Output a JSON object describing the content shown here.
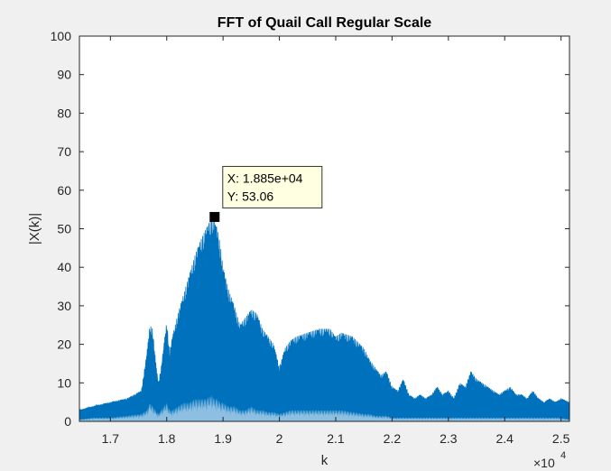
{
  "chart_data": {
    "type": "area",
    "title": "FFT of Quail Call Regular Scale",
    "xlabel": "k",
    "ylabel": "|X(k)|",
    "x_exponent_base": "×10",
    "x_exponent_power": "4",
    "xlim": [
      16450,
      25150
    ],
    "ylim": [
      0,
      100
    ],
    "grid": false,
    "x_ticks": [
      {
        "value": 17000,
        "label": "1.7"
      },
      {
        "value": 18000,
        "label": "1.8"
      },
      {
        "value": 19000,
        "label": "1.9"
      },
      {
        "value": 20000,
        "label": "2"
      },
      {
        "value": 21000,
        "label": "2.1"
      },
      {
        "value": 22000,
        "label": "2.2"
      },
      {
        "value": 23000,
        "label": "2.3"
      },
      {
        "value": 24000,
        "label": "2.4"
      },
      {
        "value": 25000,
        "label": "2.5"
      }
    ],
    "y_ticks": [
      {
        "value": 0,
        "label": "0"
      },
      {
        "value": 10,
        "label": "10"
      },
      {
        "value": 20,
        "label": "20"
      },
      {
        "value": 30,
        "label": "30"
      },
      {
        "value": 40,
        "label": "40"
      },
      {
        "value": 50,
        "label": "50"
      },
      {
        "value": 60,
        "label": "60"
      },
      {
        "value": 70,
        "label": "70"
      },
      {
        "value": 80,
        "label": "80"
      },
      {
        "value": 90,
        "label": "90"
      },
      {
        "value": 100,
        "label": "100"
      }
    ],
    "series_color": "#0072bd",
    "envelope": {
      "x": [
        16450,
        16700,
        17000,
        17300,
        17550,
        17650,
        17700,
        17750,
        17800,
        17850,
        17900,
        17950,
        18000,
        18050,
        18100,
        18200,
        18300,
        18400,
        18500,
        18600,
        18700,
        18800,
        18850,
        18900,
        18950,
        19000,
        19100,
        19200,
        19300,
        19400,
        19500,
        19600,
        19700,
        19800,
        19900,
        20000,
        20100,
        20200,
        20300,
        20500,
        20700,
        20900,
        21000,
        21100,
        21300,
        21500,
        21600,
        21700,
        21800,
        21900,
        22000,
        22100,
        22200,
        22300,
        22400,
        22500,
        22600,
        22700,
        22800,
        22900,
        23000,
        23100,
        23200,
        23300,
        23400,
        23500,
        23600,
        23700,
        23800,
        23900,
        24000,
        24100,
        24200,
        24300,
        24400,
        24500,
        24600,
        24700,
        24800,
        24900,
        25000,
        25150
      ],
      "upper": [
        3,
        4,
        5,
        6,
        8,
        18,
        25,
        24,
        16,
        10,
        14,
        20,
        26,
        18,
        22,
        28,
        33,
        38,
        43,
        47,
        50,
        53,
        52,
        50,
        46,
        40,
        34,
        30,
        25,
        27,
        29,
        28,
        24,
        22,
        20,
        14,
        19,
        21,
        22,
        23,
        24,
        24,
        22,
        23,
        22,
        19,
        16,
        14,
        12,
        13,
        9,
        8,
        11,
        7,
        6,
        7,
        6,
        7,
        9,
        7,
        8,
        6,
        10,
        9,
        13,
        11,
        10,
        9,
        8,
        7,
        8,
        9,
        7,
        7,
        6,
        8,
        6,
        5,
        6,
        5,
        6,
        5
      ],
      "lower": [
        0.5,
        1,
        1,
        1.5,
        2,
        3,
        5,
        4,
        3,
        2,
        3,
        4,
        5,
        3,
        3,
        4,
        5,
        5,
        6,
        6,
        6,
        7,
        6,
        6,
        5,
        5,
        4,
        4,
        3,
        3,
        4,
        3,
        3,
        2.5,
        2.5,
        2,
        2.5,
        3,
        3,
        3,
        3,
        3,
        3,
        3,
        2.5,
        2,
        2,
        1.5,
        1.5,
        1.5,
        1,
        1,
        1,
        1,
        1,
        1,
        1,
        1,
        1,
        1,
        1,
        1,
        1,
        1,
        1,
        1,
        1,
        1,
        1,
        1,
        1,
        1,
        1,
        1,
        1,
        1,
        1,
        1,
        1,
        1,
        1,
        0.5
      ]
    },
    "datatip": {
      "x": 18850,
      "y": 53.06,
      "x_text": "X: 1.885e+04",
      "y_text": "Y: 53.06"
    }
  }
}
